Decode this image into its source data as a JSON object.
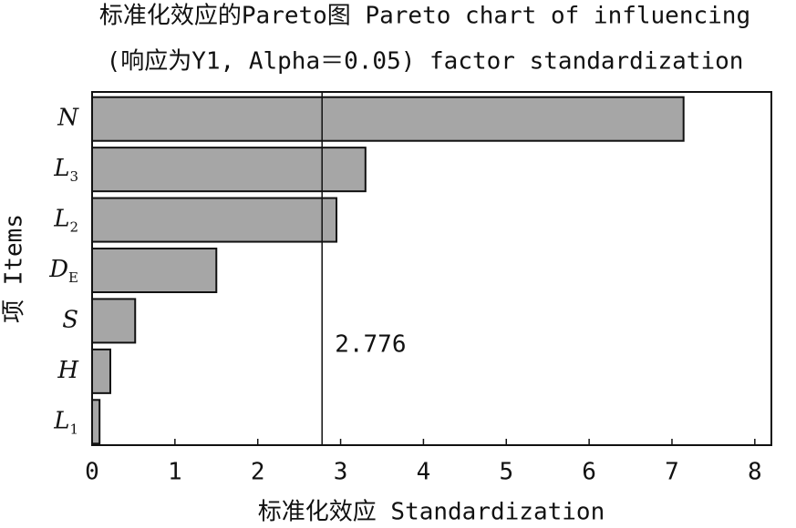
{
  "chart_data": {
    "type": "hbar",
    "title": "标准化效应的Pareto图 Pareto chart of influencing",
    "subtitle": "(响应为Y1, Alpha＝0.05) factor standardization",
    "x_label": "标准化效应 Standardization",
    "y_label": "项 Items",
    "categories": [
      "N",
      "L",
      "L",
      "D",
      "S",
      "H",
      "L"
    ],
    "category_subscripts": [
      null,
      "3",
      "2",
      "E",
      null,
      null,
      "1"
    ],
    "values": [
      7.14,
      3.3,
      2.95,
      1.5,
      0.52,
      0.22,
      0.09
    ],
    "color": "#a6a6a6",
    "reference_line": 2.776,
    "xlim": [
      0,
      8.2
    ],
    "xticks": [
      0,
      1,
      2,
      3,
      4,
      5,
      6,
      7,
      8
    ]
  }
}
